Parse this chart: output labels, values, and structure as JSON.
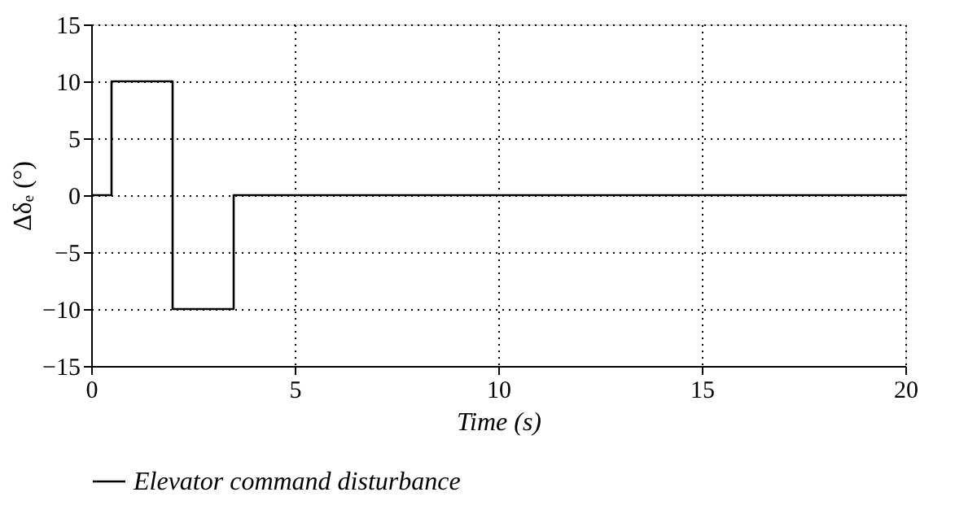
{
  "chart_data": {
    "type": "step",
    "xlabel": "Time (s)",
    "ylabel": "Δδₑ (°)",
    "x": [
      0,
      0.5,
      2,
      3.5,
      20
    ],
    "series": [
      {
        "name": "Elevator command disturbance",
        "color": "#000000",
        "values": [
          0,
          10,
          -10,
          0,
          0
        ]
      }
    ],
    "xlim": [
      0,
      20
    ],
    "xticks": [
      0,
      5,
      10,
      15,
      20
    ],
    "ylim": [
      -15,
      15
    ],
    "yticks": [
      -15,
      -10,
      -5,
      0,
      5,
      10,
      15
    ],
    "grid": true,
    "legend": "bottom",
    "line_style": "solid"
  }
}
